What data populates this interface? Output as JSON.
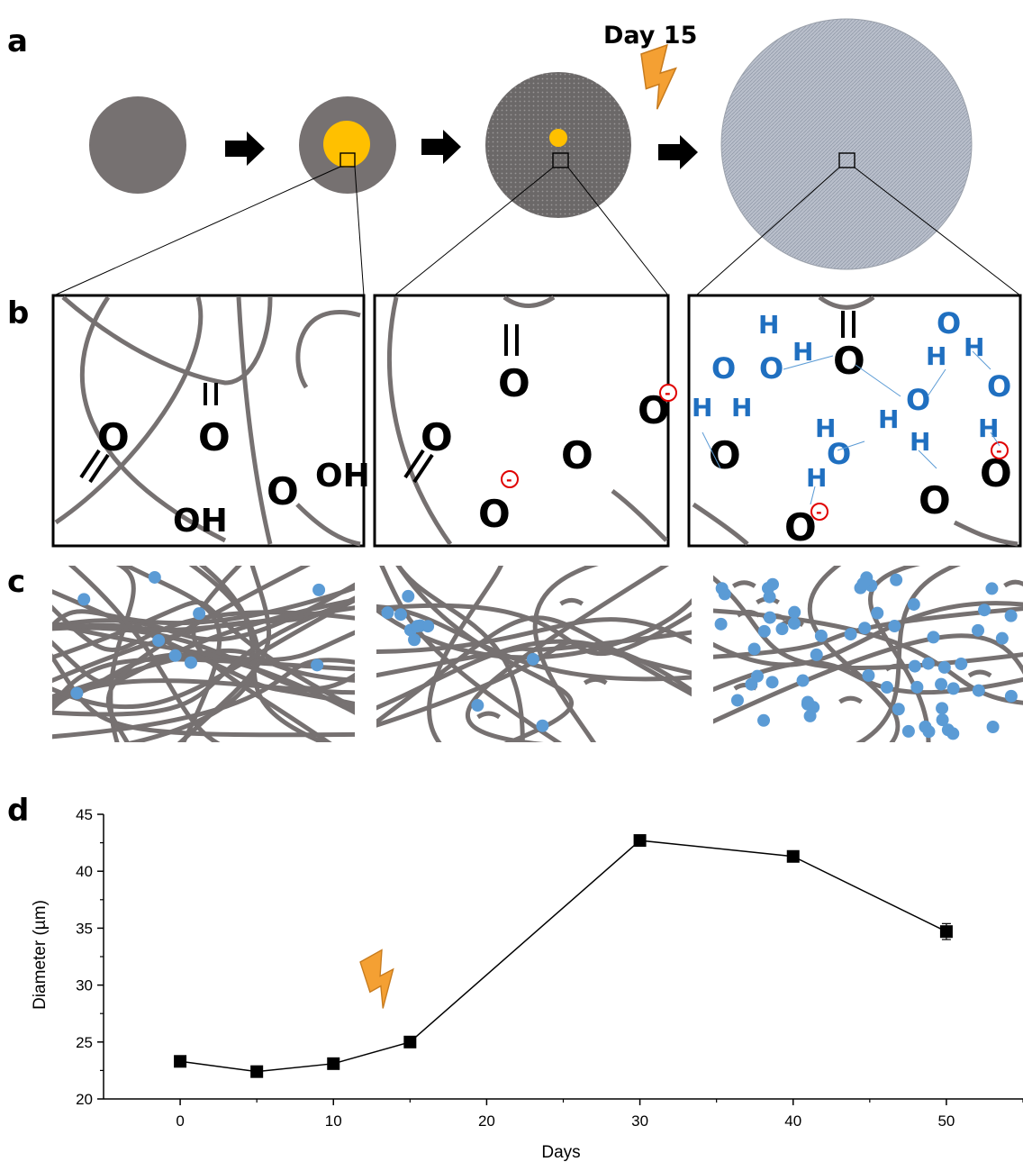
{
  "panels": {
    "a": "a",
    "b": "b",
    "c": "c",
    "d": "d"
  },
  "schematic": {
    "day_label": "Day 15",
    "icons": [
      "right-arrow-icon",
      "lightning-icon"
    ]
  },
  "chem_labels": {
    "oh": "OH",
    "o": "O",
    "h": "H",
    "minus": "-"
  },
  "colors": {
    "fiber": "#767171",
    "particle": "#5b9bd5",
    "water": "#1f6fc0",
    "charge": "#e00000",
    "yellow": "#ffc000",
    "bolt": "#f4a033"
  },
  "chart_data": {
    "type": "line",
    "xlabel": "Days",
    "ylabel": "Diameter (µm)",
    "xlim": [
      -5,
      55
    ],
    "ylim": [
      20,
      45
    ],
    "xticks": [
      0,
      10,
      20,
      30,
      40,
      50
    ],
    "yticks": [
      20,
      25,
      30,
      35,
      40,
      45
    ],
    "series": [
      {
        "x": [
          0,
          5,
          10,
          15,
          30,
          40,
          50
        ],
        "y": [
          23.3,
          22.4,
          23.1,
          25.0,
          42.7,
          41.3,
          34.7
        ],
        "error": [
          0.2,
          0.2,
          0.2,
          0.2,
          0.2,
          0.2,
          0.7
        ]
      }
    ],
    "grid": false,
    "annotation_icon": "lightning-icon"
  }
}
